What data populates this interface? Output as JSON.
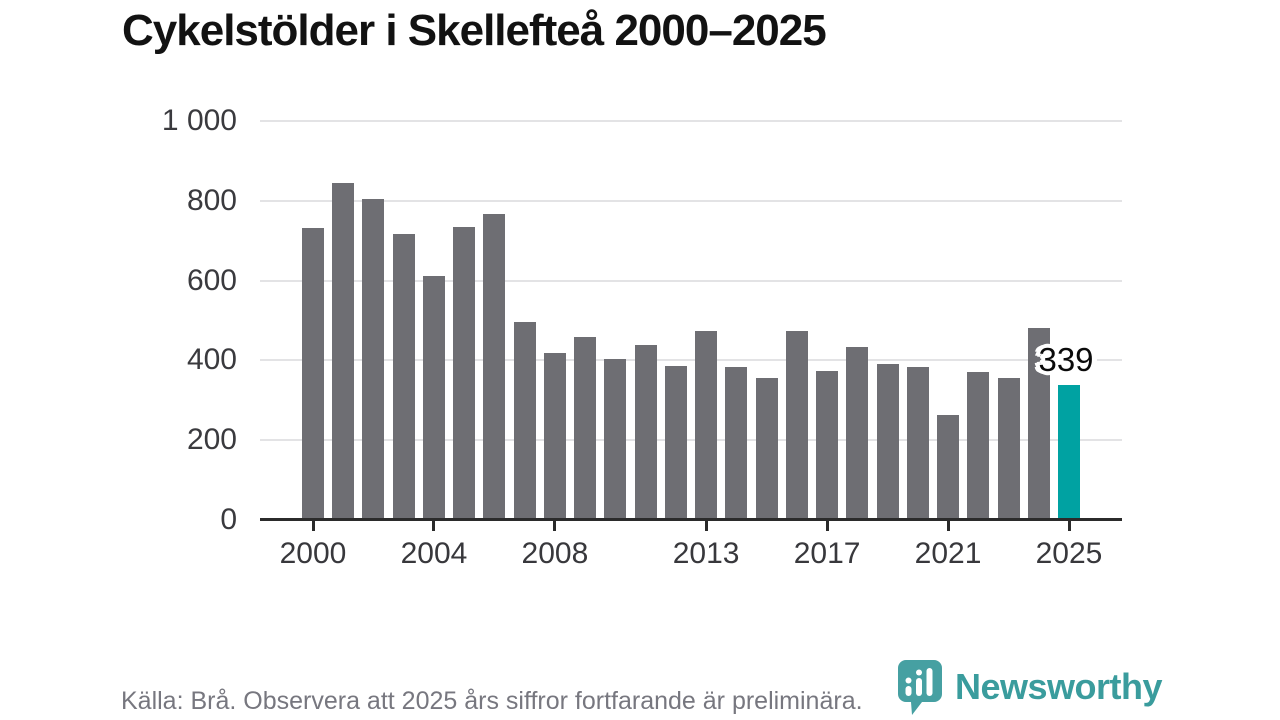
{
  "title": "Cykelstölder i Skellefteå 2000–2025",
  "footer": {
    "source_note": "Källa: Brå. Observera att 2025 års siffror fortfarande är preliminära."
  },
  "branding": {
    "logo_text": "Newsworthy",
    "logo_icon": "bar-chart-bubble-icon",
    "logo_color": "#46a0a2"
  },
  "chart_data": {
    "type": "bar",
    "title": "Cykelstölder i Skellefteå 2000–2025",
    "categories": [
      2000,
      2001,
      2002,
      2003,
      2004,
      2005,
      2006,
      2007,
      2008,
      2009,
      2010,
      2011,
      2012,
      2013,
      2014,
      2015,
      2016,
      2017,
      2018,
      2019,
      2020,
      2021,
      2022,
      2023,
      2024,
      2025
    ],
    "values": [
      732,
      845,
      804,
      718,
      612,
      734,
      768,
      497,
      419,
      459,
      404,
      439,
      387,
      474,
      383,
      355,
      473,
      374,
      433,
      391,
      384,
      263,
      372,
      355,
      480,
      339
    ],
    "bar_color": "#6e6e73",
    "highlight": {
      "year": 2025,
      "value": 339,
      "label": "339",
      "color": "#00a2a2"
    },
    "ylim": [
      0,
      1000
    ],
    "yticks": [
      0,
      200,
      400,
      600,
      800,
      1000
    ],
    "ytick_labels": [
      "0",
      "200",
      "400",
      "600",
      "800",
      "1 000"
    ],
    "xticks": [
      2000,
      2004,
      2008,
      2013,
      2017,
      2021,
      2025
    ],
    "grid": true,
    "legend": "none",
    "xlabel": "",
    "ylabel": ""
  }
}
